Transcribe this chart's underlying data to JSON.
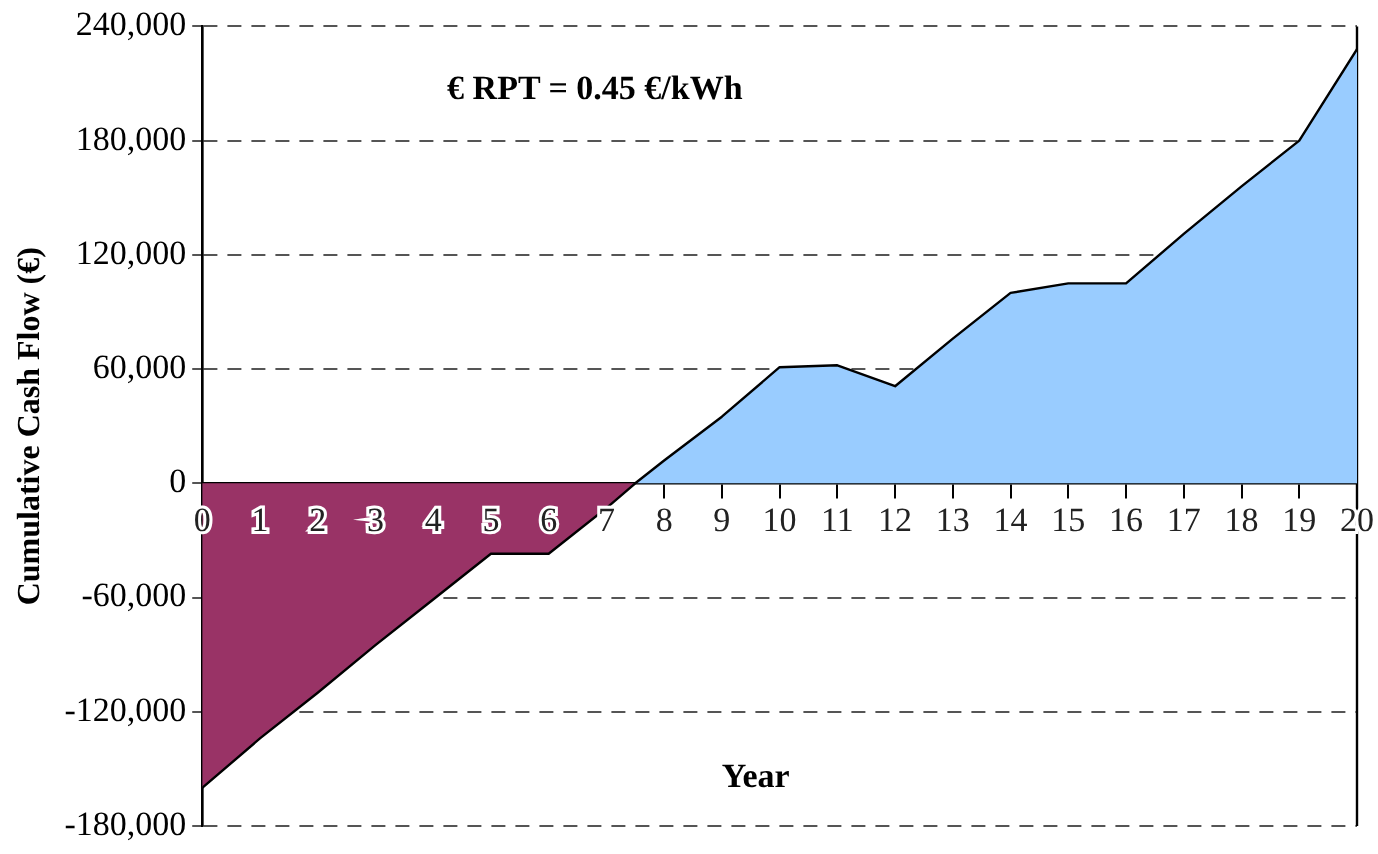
{
  "chart_data": {
    "type": "area",
    "xlabel": "Year",
    "ylabel": "Cumulative Cash Flow (€)",
    "annotations": [
      "€ RPT = 0.45 €/kWh"
    ],
    "series": [
      {
        "color": "#993366",
        "x": [
          0,
          1,
          2,
          3,
          4,
          5,
          6,
          7,
          7.5
        ],
        "values": [
          -160000,
          -134000,
          -110000,
          -85000,
          -61000,
          -37000,
          -37000,
          -13000,
          0
        ]
      },
      {
        "color": "#99ccff",
        "x": [
          7.5,
          8,
          9,
          10,
          11,
          12,
          13,
          14,
          15,
          16,
          17,
          18,
          19,
          20
        ],
        "values": [
          0,
          12000,
          35000,
          61000,
          62000,
          51000,
          76000,
          100000,
          105000,
          105000,
          131000,
          156000,
          180000,
          228000
        ]
      }
    ],
    "xlim": [
      0,
      20
    ],
    "xticks": [
      0,
      1,
      2,
      3,
      4,
      5,
      6,
      7,
      8,
      9,
      10,
      11,
      12,
      13,
      14,
      15,
      16,
      17,
      18,
      19,
      20
    ],
    "ylim": [
      -180000,
      240000
    ],
    "yticks": [
      {
        "value": -180000,
        "label": "-180,000"
      },
      {
        "value": -120000,
        "label": "-120,000"
      },
      {
        "value": -60000,
        "label": "-60,000"
      },
      0,
      {
        "value": 60000,
        "label": "60,000"
      },
      {
        "value": 120000,
        "label": "120,000"
      },
      {
        "value": 180000,
        "label": "180,000"
      },
      {
        "value": 240000,
        "label": "240,000"
      }
    ],
    "grid": "y",
    "legend": false,
    "line_style": "solid",
    "marker": "none"
  }
}
